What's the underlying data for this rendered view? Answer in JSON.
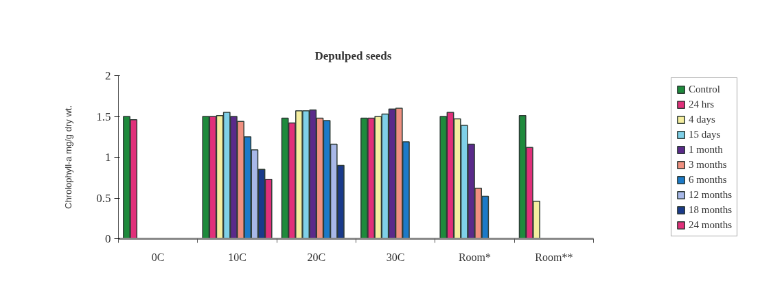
{
  "chart_data": {
    "type": "bar",
    "title": "Depulped seeds",
    "ylabel": "Chrolophyll-a mg/g dry wt.",
    "categories": [
      "0C",
      "10C",
      "20C",
      "30C",
      "Room*",
      "Room**"
    ],
    "ylim": [
      0,
      2
    ],
    "yticks": [
      0,
      0.5,
      1,
      1.5,
      2
    ],
    "legend": "right",
    "series": [
      {
        "name": "Control",
        "color": "#1e8a3c",
        "values": [
          1.5,
          1.5,
          1.48,
          1.48,
          1.5,
          1.51
        ]
      },
      {
        "name": "24 hrs",
        "color": "#e0307a",
        "values": [
          1.46,
          1.5,
          1.42,
          1.48,
          1.55,
          1.12
        ]
      },
      {
        "name": "4 days",
        "color": "#f5eea0",
        "values": [
          null,
          1.51,
          1.57,
          1.5,
          1.47,
          0.46
        ]
      },
      {
        "name": "15 days",
        "color": "#7fd0e8",
        "values": [
          null,
          1.55,
          1.57,
          1.53,
          1.39,
          null
        ]
      },
      {
        "name": "1 month",
        "color": "#5a2a8a",
        "values": [
          null,
          1.5,
          1.58,
          1.59,
          1.16,
          null
        ]
      },
      {
        "name": "3 months",
        "color": "#f09080",
        "values": [
          null,
          1.44,
          1.48,
          1.6,
          0.62,
          null
        ]
      },
      {
        "name": "6 months",
        "color": "#1c7ac8",
        "values": [
          null,
          1.25,
          1.45,
          1.19,
          0.52,
          null
        ]
      },
      {
        "name": "12 months",
        "color": "#a8b8e8",
        "values": [
          null,
          1.09,
          1.16,
          null,
          null,
          null
        ]
      },
      {
        "name": "18 months",
        "color": "#1a3a8a",
        "values": [
          null,
          0.85,
          0.9,
          null,
          null,
          null
        ]
      },
      {
        "name": "24 months",
        "color": "#e0307a",
        "values": [
          null,
          0.73,
          null,
          null,
          null,
          null
        ]
      }
    ]
  }
}
